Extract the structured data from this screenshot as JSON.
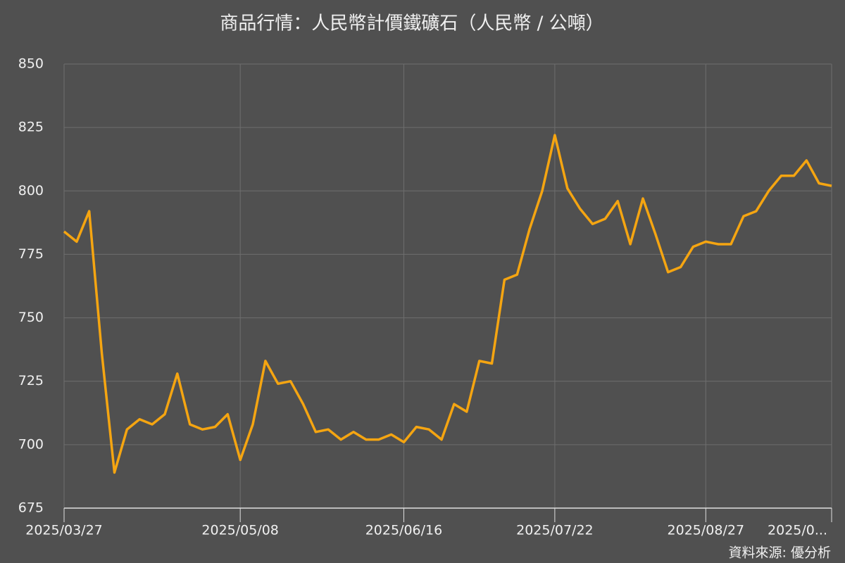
{
  "chart_data": {
    "type": "line",
    "title": "商品行情：人民幣計價鐵礦石（人民幣 / 公噸）",
    "source": "資料來源: 優分析",
    "categories": [
      "2025/03/27",
      null,
      null,
      null,
      null,
      null,
      null,
      null,
      null,
      null,
      null,
      null,
      null,
      null,
      "2025/05/08",
      null,
      null,
      null,
      null,
      null,
      null,
      null,
      null,
      null,
      null,
      null,
      null,
      "2025/06/16",
      null,
      null,
      null,
      null,
      null,
      null,
      null,
      null,
      null,
      null,
      null,
      "2025/07/22",
      null,
      null,
      null,
      null,
      null,
      null,
      null,
      null,
      null,
      null,
      null,
      "2025/08/27",
      null,
      null,
      null,
      null,
      null,
      null,
      null,
      null,
      null,
      "2025/0..."
    ],
    "series": [
      {
        "name": "人民幣計價鐵礦石",
        "color": "#f5a511",
        "values": [
          784,
          780,
          792,
          736,
          689,
          706,
          710,
          708,
          712,
          728,
          708,
          706,
          707,
          712,
          694,
          708,
          733,
          724,
          725,
          716,
          705,
          706,
          702,
          705,
          702,
          702,
          704,
          701,
          707,
          706,
          702,
          716,
          713,
          733,
          732,
          765,
          767,
          785,
          800,
          822,
          801,
          793,
          787,
          789,
          796,
          779,
          797,
          783,
          768,
          770,
          778,
          780,
          779,
          779,
          790,
          792,
          800,
          806,
          806,
          812,
          803,
          802
        ]
      }
    ],
    "ylim": [
      675,
      850
    ],
    "yticks": [
      675,
      700,
      725,
      750,
      775,
      800,
      825,
      850
    ],
    "grid": true
  }
}
